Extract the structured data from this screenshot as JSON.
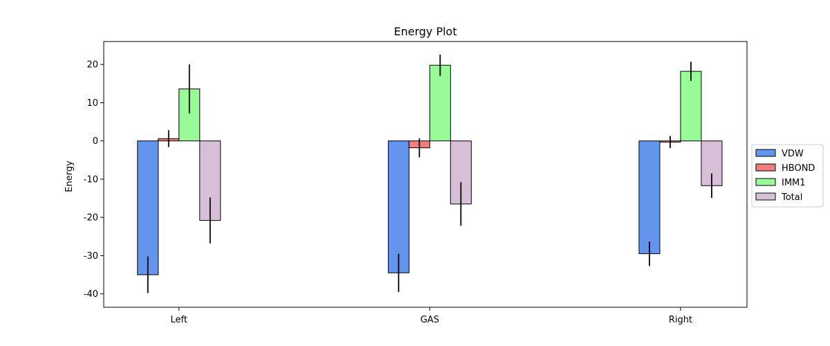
{
  "chart_data": {
    "type": "bar",
    "title": "Energy Plot",
    "xlabel": "",
    "ylabel": "Energy",
    "categories": [
      "Left",
      "GAS",
      "Right"
    ],
    "ylim": [
      -43.5,
      26
    ],
    "yticks": [
      -40,
      -30,
      -20,
      -10,
      0,
      10,
      20
    ],
    "grid": false,
    "legend_position": "right",
    "series": [
      {
        "name": "VDW",
        "color": "#6495ED",
        "values": [
          -35.0,
          -34.5,
          -29.5
        ],
        "errors": [
          4.8,
          5.0,
          3.2
        ]
      },
      {
        "name": "HBOND",
        "color": "#F08080",
        "values": [
          0.6,
          -1.8,
          -0.3
        ],
        "errors": [
          2.2,
          2.5,
          1.6
        ]
      },
      {
        "name": "IMM1",
        "color": "#98FB98",
        "values": [
          13.6,
          19.8,
          18.2
        ],
        "errors": [
          6.4,
          2.8,
          2.5
        ]
      },
      {
        "name": "Total",
        "color": "#D8BFD8",
        "values": [
          -20.8,
          -16.5,
          -11.7
        ],
        "errors": [
          6.0,
          5.7,
          3.2
        ]
      }
    ]
  }
}
